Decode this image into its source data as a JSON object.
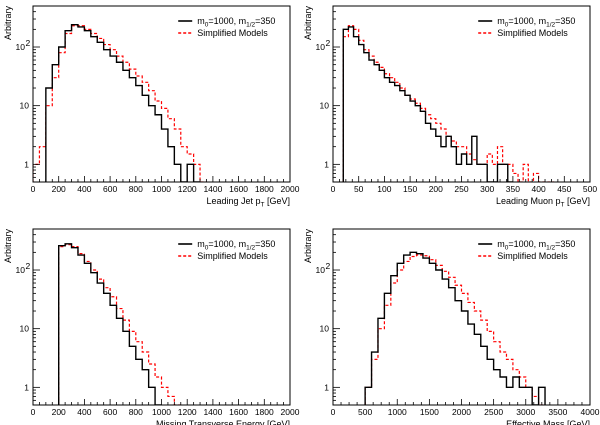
{
  "colors": {
    "series1": "#000000",
    "series2": "#ff0000",
    "frame": "#000000"
  },
  "chart_data": [
    {
      "type": "line",
      "title": "",
      "xlabel": "Leading Jet p_T [GeV]",
      "xlabel_main": "Leading Jet p",
      "xlabel_sub": "T",
      "xlabel_tail": " [GeV]",
      "ylabel": "Arbitrary",
      "xlim": [
        0,
        2000
      ],
      "ylim": [
        0.5,
        500
      ],
      "xticks": [
        0,
        200,
        400,
        600,
        800,
        1000,
        1200,
        1400,
        1600,
        1800,
        2000
      ],
      "bin_width": 50,
      "legend": {
        "position": "top-right",
        "entries": [
          {
            "main": "m",
            "s1": "0",
            "mid": "=1000, m",
            "s2": "1/2",
            "tail": "=350"
          },
          {
            "text": "Simplified Models"
          }
        ]
      },
      "series": [
        {
          "name": "m0=1000, m1/2=350",
          "x_start": 100,
          "values": [
            20,
            50,
            100,
            190,
            240,
            220,
            190,
            150,
            120,
            90,
            70,
            55,
            40,
            30,
            22,
            15,
            10,
            7,
            4,
            2,
            1,
            0.5,
            1,
            0.5
          ]
        },
        {
          "name": "Simplified Models",
          "x_start": 0,
          "values": [
            1,
            2,
            10,
            30,
            80,
            170,
            230,
            230,
            200,
            170,
            140,
            110,
            90,
            70,
            55,
            42,
            32,
            25,
            18,
            12,
            9,
            6,
            4,
            2,
            1.5,
            1,
            0.5
          ]
        }
      ]
    },
    {
      "type": "line",
      "title": "",
      "xlabel": "Leading Muon p_T [GeV]",
      "xlabel_main": "Leading Muon p",
      "xlabel_sub": "T",
      "xlabel_tail": " [GeV]",
      "ylabel": "Arbitrary",
      "xlim": [
        0,
        500
      ],
      "ylim": [
        0.5,
        500
      ],
      "xticks": [
        0,
        50,
        100,
        150,
        200,
        250,
        300,
        350,
        400,
        450,
        500
      ],
      "bin_width": 10,
      "legend": {
        "position": "top-right",
        "entries": [
          {
            "main": "m",
            "s1": "0",
            "mid": "=1000, m",
            "s2": "1/2",
            "tail": "=350"
          },
          {
            "text": "Simplified Models"
          }
        ]
      },
      "series": [
        {
          "name": "m0=1000, m1/2=350",
          "x_start": 20,
          "values": [
            200,
            220,
            150,
            110,
            80,
            60,
            50,
            40,
            30,
            25,
            22,
            18,
            15,
            12,
            10,
            8,
            5,
            4,
            3,
            2,
            3,
            2,
            1,
            1.5,
            1,
            3,
            1,
            1,
            0.5,
            0.5,
            1,
            1,
            0.5
          ]
        },
        {
          "name": "Simplified Models",
          "x_start": 20,
          "values": [
            150,
            230,
            200,
            130,
            90,
            70,
            55,
            45,
            35,
            30,
            25,
            20,
            15,
            13,
            11,
            9,
            7,
            6,
            5,
            4,
            3,
            2.5,
            2,
            2,
            1.5,
            1.2,
            1,
            1,
            1.5,
            1,
            2,
            1,
            1,
            0.7,
            0.5,
            1,
            0.5,
            0.7,
            0.5,
            0.5,
            0.5
          ]
        }
      ]
    },
    {
      "type": "line",
      "title": "",
      "xlabel": "Missing Transverse Energy [GeV]",
      "xlabel_main": "Missing Transverse Energy [GeV]",
      "xlabel_sub": "",
      "xlabel_tail": "",
      "ylabel": "Arbitrary",
      "xlim": [
        0,
        2000
      ],
      "ylim": [
        0.5,
        500
      ],
      "xticks": [
        0,
        200,
        400,
        600,
        800,
        1000,
        1200,
        1400,
        1600,
        1800,
        2000
      ],
      "bin_width": 50,
      "legend": {
        "position": "top-right",
        "entries": [
          {
            "main": "m",
            "s1": "0",
            "mid": "=1000, m",
            "s2": "1/2",
            "tail": "=350"
          },
          {
            "text": "Simplified Models"
          }
        ]
      },
      "series": [
        {
          "name": "m0=1000, m1/2=350",
          "x_start": 200,
          "values": [
            260,
            280,
            240,
            180,
            130,
            90,
            60,
            40,
            25,
            15,
            9,
            5,
            3,
            2,
            1,
            0.5
          ]
        },
        {
          "name": "Simplified Models",
          "x_start": 200,
          "values": [
            250,
            270,
            250,
            190,
            140,
            100,
            70,
            50,
            35,
            22,
            14,
            9,
            6,
            4,
            2.5,
            1.5,
            1,
            0.7,
            0.5
          ]
        }
      ]
    },
    {
      "type": "line",
      "title": "",
      "xlabel": "Effective Mass [GeV]",
      "xlabel_main": "Effective Mass [GeV]",
      "xlabel_sub": "",
      "xlabel_tail": "",
      "ylabel": "Arbitrary",
      "xlim": [
        0,
        4000
      ],
      "ylim": [
        0.5,
        500
      ],
      "xticks": [
        0,
        500,
        1000,
        1500,
        2000,
        2500,
        3000,
        3500,
        4000
      ],
      "bin_width": 100,
      "legend": {
        "position": "top-right",
        "entries": [
          {
            "main": "m",
            "s1": "0",
            "mid": "=1000, m",
            "s2": "1/2",
            "tail": "=350"
          },
          {
            "text": "Simplified Models"
          }
        ]
      },
      "series": [
        {
          "name": "m0=1000, m1/2=350",
          "x_start": 500,
          "values": [
            1,
            4,
            15,
            40,
            80,
            130,
            180,
            200,
            190,
            160,
            130,
            100,
            70,
            50,
            30,
            20,
            12,
            8,
            5,
            3,
            2,
            1.5,
            1,
            1.5,
            1,
            1,
            0.5,
            1
          ]
        },
        {
          "name": "Simplified Models",
          "x_start": 500,
          "values": [
            1,
            3,
            10,
            25,
            60,
            100,
            140,
            170,
            180,
            175,
            150,
            120,
            95,
            75,
            55,
            40,
            28,
            20,
            14,
            9,
            6,
            4,
            3,
            2,
            1.5,
            1,
            0.7,
            0.5
          ]
        }
      ]
    }
  ]
}
